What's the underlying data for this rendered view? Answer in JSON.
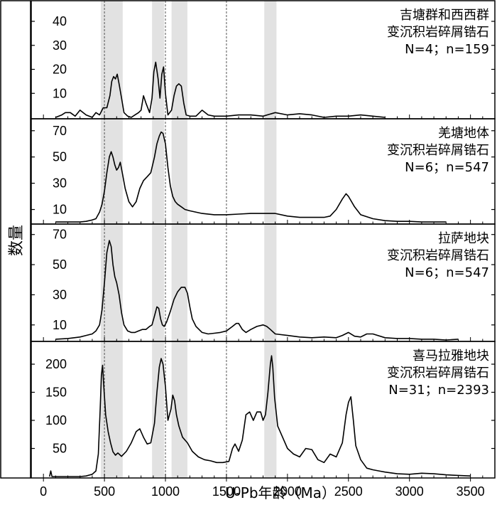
{
  "chart_data": {
    "type": "line",
    "layout": "stacked-panels",
    "x_axis": {
      "label": "U-Pb年龄（Ma）",
      "range": [
        -100,
        3700
      ],
      "ticks": [
        0,
        500,
        1000,
        1500,
        2000,
        2500,
        3000,
        3500
      ],
      "tick_labels": [
        "0",
        "500",
        "1000",
        "1500",
        "2000",
        "2500",
        "3000",
        "3500"
      ]
    },
    "y_axis_label": "数量",
    "shaded_bands_ma": [
      [
        470,
        650
      ],
      [
        890,
        990
      ],
      [
        1050,
        1180
      ],
      [
        1810,
        1910
      ]
    ],
    "dashed_lines_ma": [
      500,
      1000,
      1500
    ],
    "panels": [
      {
        "title": "吉塘群和西西群",
        "subtitle": "变沉积岩碎屑锆石",
        "stats": "N=4；n=159",
        "ylim": [
          0,
          48
        ],
        "yticks": [
          10,
          20,
          30,
          40
        ],
        "ytick_labels": [
          "10",
          "20",
          "30",
          "40"
        ],
        "series": {
          "x": [
            100,
            150,
            180,
            220,
            260,
            300,
            350,
            400,
            430,
            460,
            490,
            520,
            545,
            560,
            575,
            590,
            605,
            620,
            640,
            660,
            690,
            720,
            750,
            780,
            800,
            820,
            840,
            870,
            890,
            905,
            920,
            940,
            955,
            970,
            985,
            1000,
            1020,
            1050,
            1070,
            1090,
            1110,
            1130,
            1150,
            1170,
            1200,
            1250,
            1300,
            1350,
            1400,
            1500,
            1600,
            1700,
            1800,
            1900,
            2000,
            2100,
            2200,
            2300,
            2400,
            2500,
            2600,
            2700,
            2800
          ],
          "y": [
            0,
            1,
            2,
            2,
            0.5,
            3,
            1,
            0,
            2,
            1,
            4,
            4,
            9,
            15,
            17,
            16,
            18,
            14,
            8,
            2,
            0.5,
            0,
            1,
            2,
            3,
            9,
            6,
            2,
            8,
            19,
            23,
            16,
            8,
            18,
            21,
            10,
            1,
            3,
            9,
            13,
            14,
            13,
            6,
            1,
            0.5,
            0.5,
            3,
            1,
            0.5,
            0.5,
            1,
            1,
            0.5,
            2,
            1,
            1.5,
            1,
            0,
            0.5,
            0.5,
            1,
            0.5,
            0
          ]
        }
      },
      {
        "title": "羌塘地体",
        "subtitle": "变沉积岩碎屑锆石",
        "stats": "N=6；n=547",
        "ylim": [
          0,
          78
        ],
        "yticks": [
          10,
          30,
          50,
          70
        ],
        "ytick_labels": [
          "10",
          "30",
          "50",
          "70"
        ],
        "series": {
          "x": [
            100,
            200,
            300,
            350,
            400,
            430,
            460,
            480,
            500,
            520,
            540,
            555,
            570,
            585,
            600,
            615,
            630,
            650,
            670,
            700,
            730,
            760,
            790,
            820,
            850,
            880,
            910,
            930,
            950,
            965,
            980,
            1000,
            1020,
            1040,
            1060,
            1080,
            1100,
            1130,
            1160,
            1200,
            1300,
            1400,
            1500,
            1600,
            1700,
            1800,
            1900,
            2000,
            2100,
            2200,
            2300,
            2350,
            2400,
            2450,
            2480,
            2500,
            2550,
            2600,
            2700,
            2800,
            2900,
            3000,
            3100,
            3200,
            3300
          ],
          "y": [
            0.5,
            0.5,
            0.5,
            1,
            2,
            3,
            8,
            14,
            24,
            38,
            50,
            54,
            50,
            44,
            40,
            42,
            46,
            36,
            26,
            16,
            12,
            16,
            26,
            32,
            35,
            38,
            50,
            60,
            66,
            69,
            68,
            60,
            42,
            28,
            20,
            16,
            14,
            12,
            10,
            9,
            7,
            6,
            6,
            6.5,
            7,
            7,
            7,
            5,
            4,
            4,
            4,
            5,
            10,
            18,
            22,
            20,
            12,
            6,
            3,
            1.5,
            1,
            1,
            0.5,
            0.5,
            0.5
          ]
        }
      },
      {
        "title": "拉萨地块",
        "subtitle": "变沉积岩碎屑锆石",
        "stats": "N=6；n=547",
        "ylim": [
          0,
          76
        ],
        "yticks": [
          10,
          30,
          50,
          70
        ],
        "ytick_labels": [
          "10",
          "30",
          "50",
          "70"
        ],
        "series": {
          "x": [
            100,
            200,
            300,
            350,
            400,
            430,
            460,
            480,
            500,
            520,
            540,
            555,
            570,
            585,
            600,
            620,
            640,
            660,
            690,
            720,
            750,
            780,
            810,
            840,
            870,
            890,
            910,
            930,
            945,
            960,
            975,
            990,
            1010,
            1040,
            1070,
            1100,
            1130,
            1160,
            1180,
            1200,
            1220,
            1250,
            1300,
            1350,
            1400,
            1450,
            1500,
            1550,
            1580,
            1600,
            1630,
            1660,
            1700,
            1750,
            1800,
            1830,
            1860,
            1900,
            2000,
            2100,
            2200,
            2300,
            2400,
            2450,
            2500,
            2550,
            2600,
            2650,
            2700,
            2800,
            2900,
            3000,
            3100,
            3200,
            3300,
            3400
          ],
          "y": [
            0.5,
            1,
            2,
            3,
            4,
            6,
            10,
            20,
            38,
            58,
            66,
            62,
            50,
            42,
            38,
            30,
            18,
            10,
            6,
            5,
            5,
            6,
            7,
            7,
            9,
            10,
            16,
            22,
            21,
            14,
            10,
            9,
            12,
            19,
            27,
            32,
            35,
            35,
            31,
            22,
            14,
            9,
            5,
            4,
            4.5,
            5,
            6,
            9,
            11,
            11,
            7,
            5,
            7,
            9,
            10,
            9,
            7,
            4,
            3,
            2,
            1.5,
            2,
            1.5,
            3,
            5,
            2.5,
            2,
            4,
            4,
            1.5,
            1,
            1,
            0.5,
            0.5,
            0,
            0.5
          ]
        }
      },
      {
        "title": "喜马拉雅地块",
        "subtitle": "变沉积岩碎屑锆石",
        "stats": "N=31；n=2393",
        "ylim": [
          0,
          238
        ],
        "yticks": [
          50,
          100,
          150,
          200
        ],
        "ytick_labels": [
          "50",
          "100",
          "150",
          "200"
        ],
        "series": {
          "x": [
            50,
            60,
            70,
            100,
            200,
            300,
            350,
            400,
            430,
            450,
            465,
            475,
            485,
            495,
            510,
            530,
            550,
            570,
            590,
            610,
            640,
            680,
            720,
            760,
            790,
            820,
            850,
            880,
            910,
            930,
            950,
            965,
            980,
            1000,
            1020,
            1045,
            1060,
            1075,
            1090,
            1110,
            1140,
            1180,
            1220,
            1270,
            1320,
            1370,
            1420,
            1470,
            1520,
            1550,
            1570,
            1600,
            1630,
            1660,
            1690,
            1720,
            1750,
            1780,
            1800,
            1820,
            1840,
            1860,
            1870,
            1880,
            1895,
            1920,
            1960,
            2000,
            2050,
            2100,
            2150,
            2200,
            2250,
            2300,
            2350,
            2400,
            2450,
            2480,
            2500,
            2520,
            2540,
            2560,
            2600,
            2650,
            2700,
            2750,
            2800,
            2900,
            3000,
            3100,
            3200,
            3300,
            3400,
            3500
          ],
          "y": [
            0,
            10,
            0,
            0,
            0,
            0,
            1,
            4,
            10,
            40,
            120,
            180,
            198,
            160,
            110,
            80,
            60,
            44,
            38,
            42,
            36,
            45,
            60,
            80,
            85,
            70,
            58,
            60,
            95,
            150,
            195,
            210,
            200,
            160,
            100,
            120,
            145,
            135,
            110,
            90,
            70,
            60,
            45,
            35,
            30,
            28,
            25,
            25,
            27,
            50,
            58,
            45,
            65,
            110,
            115,
            100,
            115,
            115,
            100,
            110,
            150,
            200,
            215,
            195,
            140,
            90,
            70,
            50,
            40,
            35,
            50,
            48,
            30,
            25,
            40,
            35,
            60,
            110,
            132,
            142,
            100,
            55,
            30,
            15,
            12,
            10,
            8,
            5,
            4,
            6,
            5,
            3,
            2,
            1
          ]
        }
      }
    ]
  }
}
